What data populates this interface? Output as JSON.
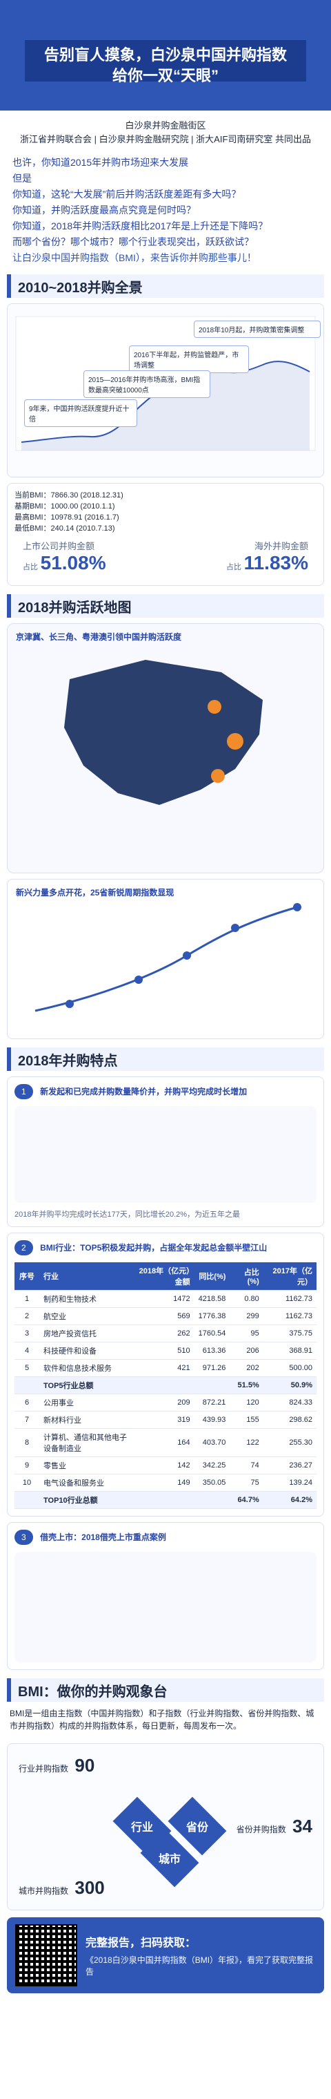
{
  "hero": {
    "line1": "告别盲人摸象，白沙泉中国并购指数",
    "line2": "给你一双“天眼”"
  },
  "org": {
    "line1": "白沙泉并购金融街区",
    "line2": "浙江省并购联合会 | 白沙泉并购金融研究院 | 浙大AIF司南研究室  共同出品"
  },
  "intro": {
    "q1": "也许，你知道2015年并购市场迎来大发展",
    "q2": "但是",
    "q3": "你知道，这轮“大发展”前后并购活跃度差距有多大吗？",
    "q4": "你知道，并购活跃度最高点究竟是何时吗？",
    "q5": "你知道，2018年并购活跃度相比2017年是上升还是下降吗？",
    "q6": "而哪个省份？哪个城市？哪个行业表现突出，跃跃欲试？",
    "q7": "让白沙泉中国并购指数（BMI），来告诉你并购那些事儿！"
  },
  "sections": {
    "s1": "2010~2018并购全景",
    "s2": "2018并购活跃地图",
    "s3": "2018年并购特点",
    "s4": "BMI：做你的并购观象台"
  },
  "overview": {
    "callouts": [
      "2018年10月起，并购政策密集调整",
      "2016下半年起，并购监管趋严，市场调整",
      "2015—2016年并购市场高涨，BMI指数最高突破10000点",
      "9年来，中国并购活跃度提升近十倍"
    ],
    "stats": [
      "当前BMI：7866.30 (2018.12.31)",
      "基期BMI：1000.00 (2010.1.1)",
      "最高BMI：10978.91 (2016.1.7)",
      "最低BMI：240.14 (2010.7.13)"
    ],
    "listed_label": "上市公司并购金额",
    "listed_share": "51.08%",
    "overseas_label": "海外并购金额",
    "overseas_share": "11.83%",
    "share_prefix": "占比"
  },
  "map": {
    "heading": "京津冀、长三角、粤港澳引领中国并购活跃度",
    "heading2": "新兴力量多点开花，25省新锐周期指数显现"
  },
  "features": {
    "f1": "新发起和已完成并购数量降价并，并购平均完成时长增加",
    "f2": "BMI行业：TOP5积极发起并购，占据全年发起总金额半壁江山",
    "f3": "借壳上市：2018借壳上市重点案例",
    "note": "2018年并购平均完成时长达177天，同比增长20.2%，为近五年之最"
  },
  "table": {
    "headers": [
      "序号",
      "行业",
      "2018年（亿元）金额",
      "同比(%)",
      "占比(%)",
      "2017年（亿元）"
    ],
    "rows": [
      [
        "1",
        "制药和生物技术",
        "1472",
        "4218.58",
        "0.80",
        "1162.73"
      ],
      [
        "2",
        "航空业",
        "569",
        "1776.38",
        "299",
        "1162.73"
      ],
      [
        "3",
        "房地产投资信托",
        "262",
        "1760.54",
        "95",
        "375.75"
      ],
      [
        "4",
        "科技硬件和设备",
        "510",
        "613.36",
        "206",
        "368.91"
      ],
      [
        "5",
        "软件和信息技术服务",
        "421",
        "971.26",
        "202",
        "500.00"
      ],
      [
        "",
        "TOP5行业总额",
        "",
        "",
        "51.5%",
        "50.9%"
      ],
      [
        "6",
        "公用事业",
        "209",
        "872.21",
        "120",
        "824.33"
      ],
      [
        "7",
        "新材料行业",
        "319",
        "439.93",
        "155",
        "298.62"
      ],
      [
        "8",
        "计算机、通信和其他电子设备制造业",
        "164",
        "403.70",
        "122",
        "255.30"
      ],
      [
        "9",
        "零售业",
        "142",
        "342.25",
        "74",
        "236.27"
      ],
      [
        "10",
        "电气设备和服务业",
        "149",
        "350.05",
        "75",
        "139.24"
      ],
      [
        "",
        "TOP10行业总额",
        "",
        "",
        "64.7%",
        "64.2%"
      ]
    ]
  },
  "bmi": {
    "intro": "BMI是一组由主指数（中国并购指数）和子指数（行业并购指数、省份并购指数、城市并购指数）构成的并购指数体系，每日更新，每周发布一次。",
    "labels": {
      "industry": "行业",
      "province": "省份",
      "city": "城市"
    },
    "counts": [
      {
        "label": "行业并购指数",
        "value": "90"
      },
      {
        "label": "省份并购指数",
        "value": "34"
      },
      {
        "label": "城市并购指数",
        "value": "300"
      }
    ]
  },
  "footer": {
    "left": "完整报告，扫码获取：",
    "caption": "《2018白沙泉中国并购指数（BMI）年报》，看完了获取完整报告"
  }
}
